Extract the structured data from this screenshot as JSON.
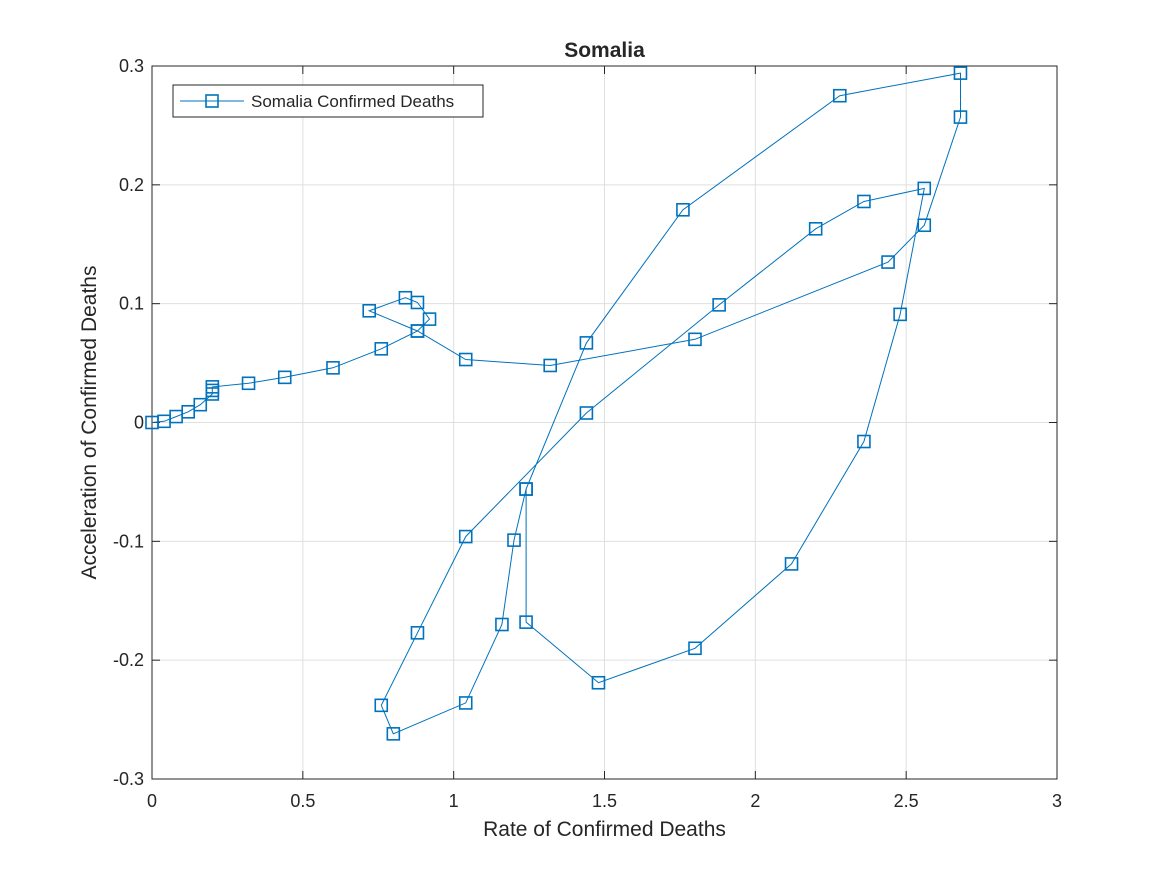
{
  "chart_data": {
    "type": "line",
    "title": "Somalia",
    "xlabel": "Rate of Confirmed Deaths",
    "ylabel": "Acceleration of Confirmed Deaths",
    "xlim": [
      0,
      3
    ],
    "ylim": [
      -0.3,
      0.3
    ],
    "xticks": [
      0,
      0.5,
      1,
      1.5,
      2,
      2.5,
      3
    ],
    "xtick_labels": [
      "0",
      "0.5",
      "1",
      "1.5",
      "2",
      "2.5",
      "3"
    ],
    "yticks": [
      -0.3,
      -0.2,
      -0.1,
      0,
      0.1,
      0.2,
      0.3
    ],
    "ytick_labels": [
      "-0.3",
      "-0.2",
      "-0.1",
      "0",
      "0.1",
      "0.2",
      "0.3"
    ],
    "grid": true,
    "legend_position": "top-left",
    "marker": "square",
    "series": [
      {
        "name": "Somalia Confirmed Deaths",
        "color": "#0072BD",
        "x": [
          0,
          0.04,
          0.08,
          0.12,
          0.16,
          0.2,
          0.2,
          0.2,
          0.32,
          0.44,
          0.6,
          0.76,
          0.88,
          0.92,
          0.88,
          0.84,
          0.72,
          0.88,
          1.04,
          1.32,
          1.8,
          2.44,
          2.56,
          2.68,
          2.68,
          2.28,
          1.76,
          1.44,
          1.24,
          1.24,
          1.48,
          1.8,
          2.12,
          2.36,
          2.48,
          2.56,
          2.36,
          2.2,
          1.88,
          1.44,
          1.04,
          0.88,
          0.76,
          0.8,
          1.04,
          1.16,
          1.2,
          1.24
        ],
        "y": [
          0,
          0.001,
          0.005,
          0.009,
          0.015,
          0.024,
          0.027,
          0.03,
          0.033,
          0.038,
          0.046,
          0.062,
          0.077,
          0.087,
          0.101,
          0.105,
          0.094,
          0.077,
          0.053,
          0.048,
          0.07,
          0.135,
          0.166,
          0.257,
          0.294,
          0.275,
          0.179,
          0.067,
          -0.056,
          -0.168,
          -0.219,
          -0.19,
          -0.119,
          -0.016,
          0.091,
          0.197,
          0.186,
          0.163,
          0.099,
          0.008,
          -0.096,
          -0.177,
          -0.238,
          -0.262,
          -0.236,
          -0.17,
          -0.099,
          -0.056
        ]
      }
    ]
  }
}
